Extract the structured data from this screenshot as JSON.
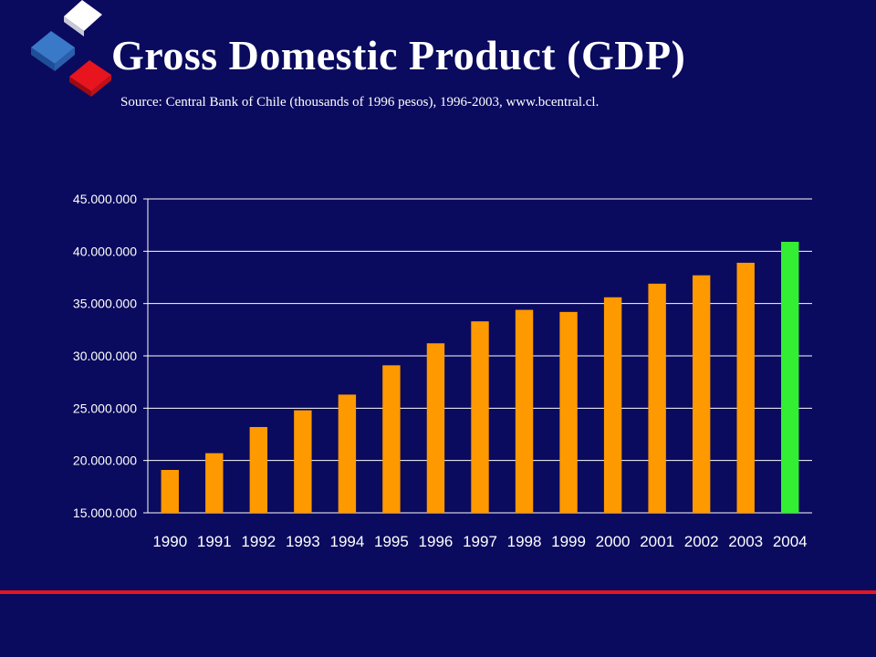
{
  "slide": {
    "title": "Gross Domestic Product (GDP)",
    "subtitle": "Source: Central Bank of Chile (thousands of 1996 pesos), 1996-2003, www.bcentral.cl."
  },
  "colors": {
    "background": "#0a0a5e",
    "bar": "#ff9900",
    "highlight_bar": "#33ee33",
    "grid": "#ffffff",
    "accent_line": "#e8141e"
  },
  "chart_data": {
    "type": "bar",
    "categories": [
      "1990",
      "1991",
      "1992",
      "1993",
      "1994",
      "1995",
      "1996",
      "1997",
      "1998",
      "1999",
      "2000",
      "2001",
      "2002",
      "2003",
      "2004"
    ],
    "values": [
      19100000,
      20700000,
      23200000,
      24800000,
      26300000,
      29100000,
      31200000,
      33300000,
      34400000,
      34200000,
      35600000,
      36900000,
      37700000,
      38900000,
      40900000
    ],
    "highlight_index": 14,
    "ylim": [
      15000000,
      45000000
    ],
    "yticks": [
      15000000,
      20000000,
      25000000,
      30000000,
      35000000,
      40000000,
      45000000
    ],
    "ytick_labels": [
      "15.000.000",
      "20.000.000",
      "25.000.000",
      "30.000.000",
      "35.000.000",
      "40.000.000",
      "45.000.000"
    ],
    "grid": true,
    "legend": "none",
    "xlabel": "",
    "ylabel": ""
  }
}
